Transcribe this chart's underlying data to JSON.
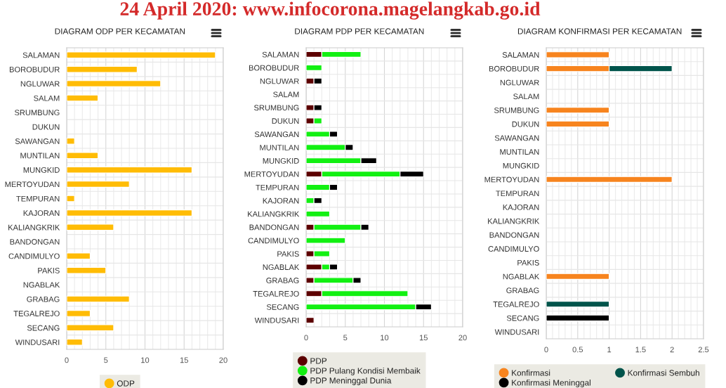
{
  "chart_data": [
    {
      "type": "bar",
      "orientation": "horizontal",
      "title": "DIAGRAM ODP PER KECAMATAN",
      "annotations": [
        "24 April 2020: www.infocorona.magelangkab.go.id"
      ],
      "categories": [
        "SALAMAN",
        "BOROBUDUR",
        "NGLUWAR",
        "SALAM",
        "SRUMBUNG",
        "DUKUN",
        "SAWANGAN",
        "MUNTILAN",
        "MUNGKID",
        "MERTOYUDAN",
        "TEMPURAN",
        "KAJORAN",
        "KALIANGKRIK",
        "BANDONGAN",
        "CANDIMULYO",
        "PAKIS",
        "NGABLAK",
        "GRABAG",
        "TEGALREJO",
        "SECANG",
        "WINDUSARI"
      ],
      "series": [
        {
          "name": "ODP",
          "color": "#ffbc05",
          "values": [
            19,
            9,
            12,
            4,
            0,
            0,
            1,
            4,
            16,
            8,
            1,
            16,
            6,
            0,
            3,
            5,
            0,
            8,
            3,
            6,
            2
          ]
        }
      ],
      "xlim": [
        0,
        20
      ],
      "xticks": [
        0,
        {
          "value": 1,
          "label": null
        },
        {
          "value": 2,
          "label": null
        },
        {
          "value": 3,
          "label": null
        },
        {
          "value": 4,
          "label": null
        },
        5,
        {
          "value": 6,
          "label": null
        },
        {
          "value": 7,
          "label": null
        },
        {
          "value": 8,
          "label": null
        },
        {
          "value": 9,
          "label": null
        },
        10,
        {
          "value": 11,
          "label": null
        },
        {
          "value": 12,
          "label": null
        },
        {
          "value": 13,
          "label": null
        },
        {
          "value": 14,
          "label": null
        },
        15,
        {
          "value": 16,
          "label": null
        },
        {
          "value": 17,
          "label": null
        },
        {
          "value": 18,
          "label": null
        },
        {
          "value": 19,
          "label": null
        },
        20
      ],
      "grid": true,
      "legend": "bottom"
    },
    {
      "type": "bar",
      "orientation": "horizontal",
      "stacked": true,
      "title": "DIAGRAM PDP PER KECAMATAN",
      "categories": [
        "SALAMAN",
        "BOROBUDUR",
        "NGLUWAR",
        "SALAM",
        "SRUMBUNG",
        "DUKUN",
        "SAWANGAN",
        "MUNTILAN",
        "MUNGKID",
        "MERTOYUDAN",
        "TEMPURAN",
        "KAJORAN",
        "KALIANGKRIK",
        "BANDONGAN",
        "CANDIMULYO",
        "PAKIS",
        "NGABLAK",
        "GRABAG",
        "TEGALREJO",
        "SECANG",
        "WINDUSARI"
      ],
      "series": [
        {
          "name": "PDP",
          "color": "#5c0000",
          "values": [
            2,
            0,
            1,
            0,
            1,
            1,
            0,
            0,
            0,
            2,
            0,
            0,
            0,
            1,
            0,
            1,
            2,
            1,
            2,
            0,
            1
          ]
        },
        {
          "name": "PDP Pulang Kondisi Membaik",
          "color": "#12f012",
          "values": [
            5,
            2,
            0,
            0,
            0,
            1,
            3,
            5,
            7,
            10,
            3,
            1,
            3,
            6,
            5,
            2,
            1,
            5,
            11,
            14,
            0
          ]
        },
        {
          "name": "PDP Meninggal Dunia",
          "color": "#000000",
          "values": [
            0,
            0,
            1,
            0,
            1,
            0,
            1,
            1,
            2,
            3,
            1,
            1,
            0,
            1,
            0,
            0,
            1,
            1,
            0,
            2,
            0
          ]
        }
      ],
      "xlim": [
        0,
        20
      ],
      "xticks": [
        0,
        {
          "value": 1,
          "label": null
        },
        {
          "value": 2,
          "label": null
        },
        {
          "value": 3,
          "label": null
        },
        {
          "value": 4,
          "label": null
        },
        5,
        {
          "value": 6,
          "label": null
        },
        {
          "value": 7,
          "label": null
        },
        {
          "value": 8,
          "label": null
        },
        {
          "value": 9,
          "label": null
        },
        10,
        {
          "value": 11,
          "label": null
        },
        {
          "value": 12,
          "label": null
        },
        {
          "value": 13,
          "label": null
        },
        {
          "value": 14,
          "label": null
        },
        15,
        {
          "value": 16,
          "label": null
        },
        {
          "value": 17,
          "label": null
        },
        {
          "value": 18,
          "label": null
        },
        {
          "value": 19,
          "label": null
        },
        20
      ],
      "grid": true,
      "legend": "bottom"
    },
    {
      "type": "bar",
      "orientation": "horizontal",
      "stacked": true,
      "title": "DIAGRAM KONFIRMASI PER KECAMATAN",
      "categories": [
        "SALAMAN",
        "BOROBUDUR",
        "NGLUWAR",
        "SALAM",
        "SRUMBUNG",
        "DUKUN",
        "SAWANGAN",
        "MUNTILAN",
        "MUNGKID",
        "MERTOYUDAN",
        "TEMPURAN",
        "KAJORAN",
        "KALIANGKRIK",
        "BANDONGAN",
        "CANDIMULYO",
        "PAKIS",
        "NGABLAK",
        "GRABAG",
        "TEGALREJO",
        "SECANG",
        "WINDUSARI"
      ],
      "series": [
        {
          "name": "Konfirmasi",
          "color": "#f7841e",
          "values": [
            1,
            1,
            0,
            0,
            1,
            1,
            0,
            0,
            0,
            2,
            0,
            0,
            0,
            0,
            0,
            0,
            1,
            0,
            0,
            0,
            0
          ]
        },
        {
          "name": "Konfirmasi Sembuh",
          "color": "#00544b",
          "values": [
            0,
            1,
            0,
            0,
            0,
            0,
            0,
            0,
            0,
            0,
            0,
            0,
            0,
            0,
            0,
            0,
            0,
            0,
            1,
            0,
            0
          ]
        },
        {
          "name": "Konfirmasi Meninggal",
          "color": "#000000",
          "values": [
            0,
            0,
            0,
            0,
            0,
            0,
            0,
            0,
            0,
            0,
            0,
            0,
            0,
            0,
            0,
            0,
            0,
            0,
            0,
            1,
            0
          ]
        }
      ],
      "xlim": [
        0,
        2.5
      ],
      "xticks": [
        0,
        {
          "value": 0.1,
          "label": null
        },
        {
          "value": 0.2,
          "label": null
        },
        {
          "value": 0.3,
          "label": null
        },
        {
          "value": 0.4,
          "label": null
        },
        0.5,
        {
          "value": 0.6,
          "label": null
        },
        {
          "value": 0.7,
          "label": null
        },
        {
          "value": 0.8,
          "label": null
        },
        {
          "value": 0.9,
          "label": null
        },
        1,
        {
          "value": 1.1,
          "label": null
        },
        {
          "value": 1.2,
          "label": null
        },
        {
          "value": 1.3,
          "label": null
        },
        {
          "value": 1.4,
          "label": null
        },
        1.5,
        {
          "value": 1.6,
          "label": null
        },
        {
          "value": 1.7,
          "label": null
        },
        {
          "value": 1.8,
          "label": null
        },
        {
          "value": 1.9,
          "label": null
        },
        2,
        {
          "value": 2.1,
          "label": null
        },
        {
          "value": 2.2,
          "label": null
        },
        {
          "value": 2.3,
          "label": null
        },
        {
          "value": 2.4,
          "label": null
        },
        2.5
      ],
      "grid": true,
      "legend": "bottom"
    }
  ]
}
